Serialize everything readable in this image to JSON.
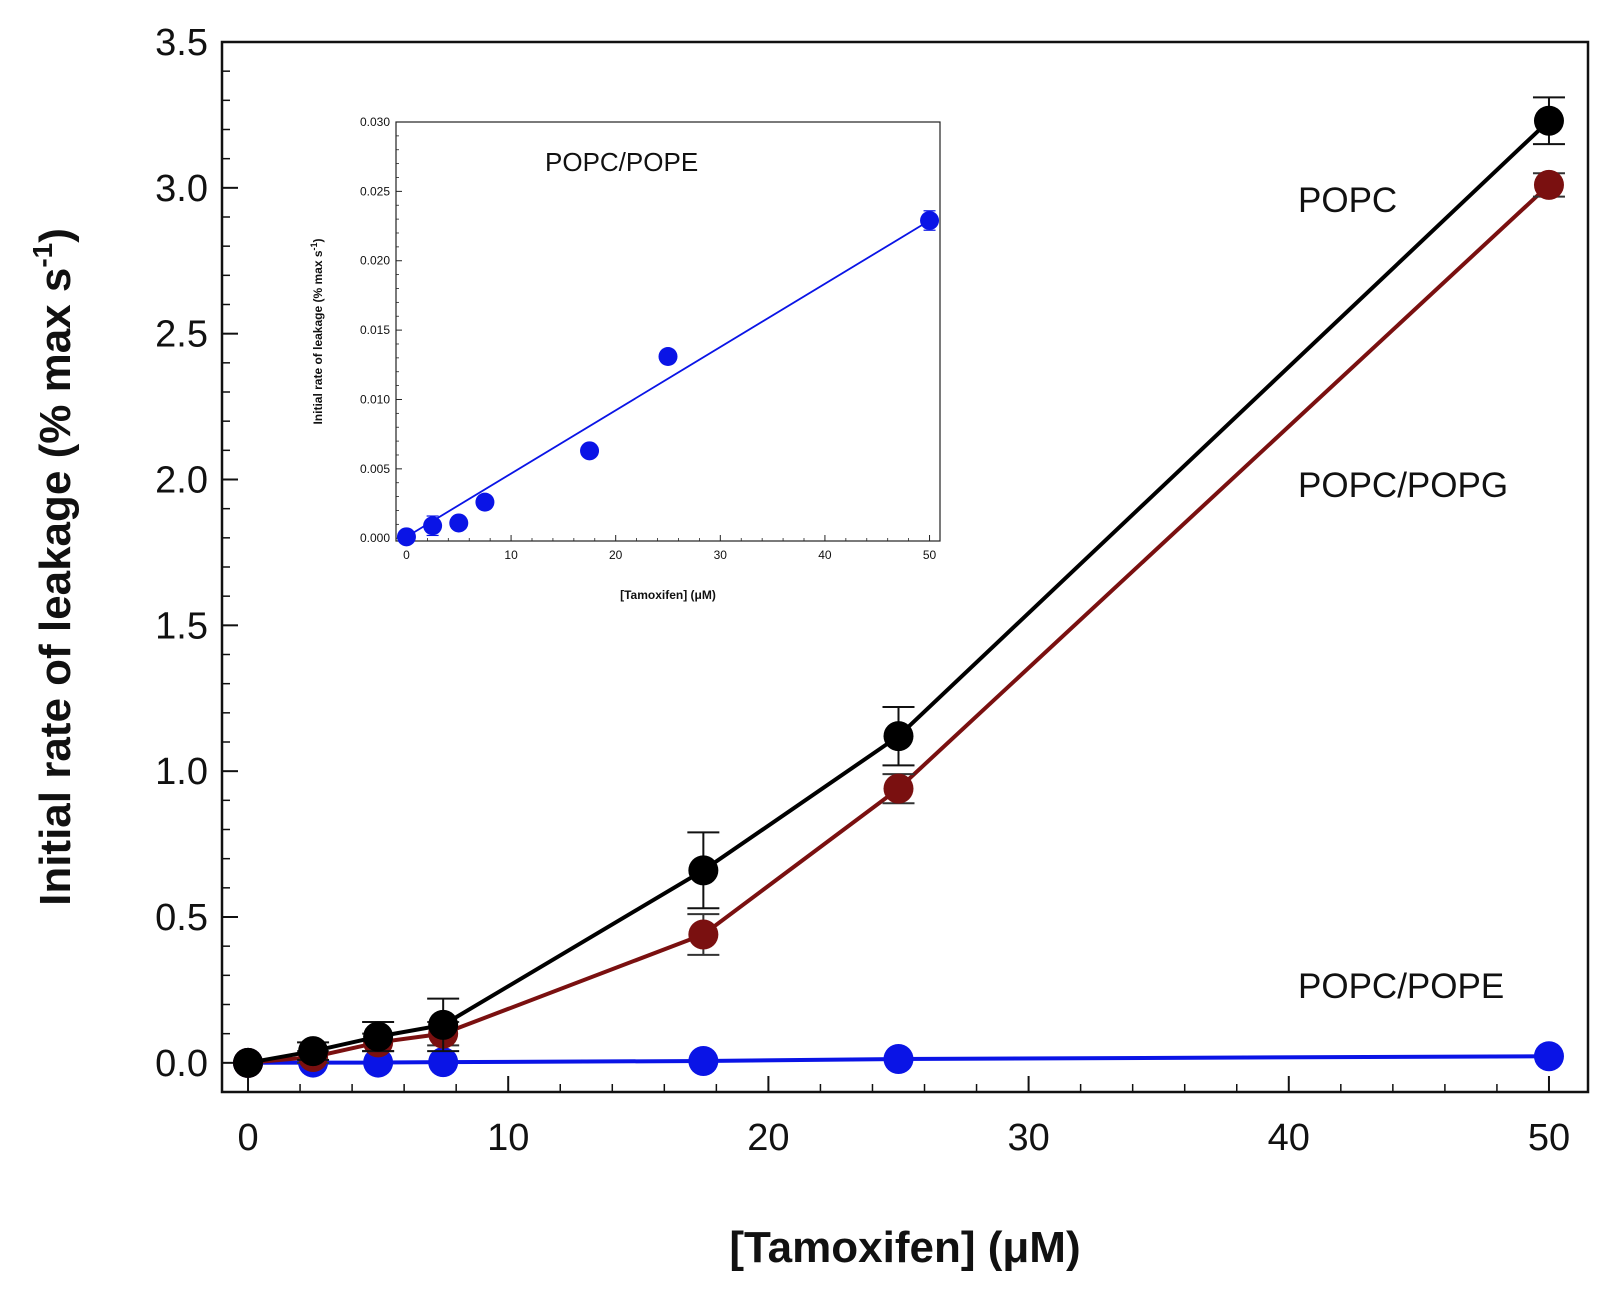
{
  "chart_data": [
    {
      "id": "main",
      "type": "line",
      "xlabel": "[Tamoxifen] (μM)",
      "ylabel_main": "Initial rate of leakage (% max s",
      "ylabel_sup": "-1",
      "ylabel_close": ")",
      "xlim": [
        -1,
        51.5
      ],
      "ylim": [
        -0.1,
        3.5
      ],
      "xticks": [
        0,
        10,
        20,
        30,
        40,
        50
      ],
      "xtick_labels": [
        "0",
        "10",
        "20",
        "30",
        "40",
        "50"
      ],
      "yticks": [
        0.0,
        0.5,
        1.0,
        1.5,
        2.0,
        2.5,
        3.0,
        3.5
      ],
      "ytick_labels": [
        "0.0",
        "0.5",
        "1.0",
        "1.5",
        "2.0",
        "2.5",
        "3.0",
        "3.5"
      ],
      "series": [
        {
          "name": "POPC",
          "color": "#000000",
          "x": [
            0,
            2.5,
            5,
            7.5,
            17.5,
            25,
            50
          ],
          "y": [
            0.0,
            0.04,
            0.09,
            0.13,
            0.66,
            1.12,
            3.23
          ],
          "err": [
            0.0,
            0.03,
            0.05,
            0.09,
            0.13,
            0.1,
            0.08
          ]
        },
        {
          "name": "POPC/POPG",
          "color": "#7a1010",
          "x": [
            0,
            2.5,
            5,
            7.5,
            17.5,
            25,
            50
          ],
          "y": [
            0.0,
            0.02,
            0.07,
            0.1,
            0.44,
            0.94,
            3.01
          ],
          "err": [
            0.0,
            0.02,
            0.03,
            0.04,
            0.07,
            0.05,
            0.04
          ]
        },
        {
          "name": "POPC/POPE",
          "color": "#0a14e6",
          "x": [
            0,
            2.5,
            5,
            7.5,
            17.5,
            25,
            50
          ],
          "y": [
            0.0,
            0.0009,
            0.0009,
            0.0024,
            0.0062,
            0.0131,
            0.0226
          ],
          "err": [
            0,
            0,
            0,
            0,
            0,
            0,
            0
          ]
        }
      ],
      "series_labels": [
        "POPC",
        "POPC/POPG",
        "POPC/POPE"
      ]
    },
    {
      "id": "inset",
      "type": "scatter",
      "title": "POPC/POPE",
      "xlabel": "[Tamoxifen] (μM)",
      "ylabel_main": "Initial rate of leakage (% max s",
      "ylabel_sup": "-1",
      "ylabel_close": ")",
      "xlim": [
        -1,
        51
      ],
      "ylim": [
        -0.0002,
        0.03
      ],
      "xticks": [
        0,
        10,
        20,
        30,
        40,
        50
      ],
      "xtick_labels": [
        "0",
        "10",
        "20",
        "30",
        "40",
        "50"
      ],
      "yticks": [
        0.0,
        0.005,
        0.01,
        0.015,
        0.02,
        0.025,
        0.03
      ],
      "ytick_labels": [
        "0.000",
        "0.005",
        "0.010",
        "0.015",
        "0.020",
        "0.025",
        "0.030"
      ],
      "color": "#0a14e6",
      "points": {
        "x": [
          0,
          2.5,
          5,
          7.5,
          17.5,
          25,
          50
        ],
        "y": [
          0.0001,
          0.0009,
          0.0011,
          0.0026,
          0.0063,
          0.0131,
          0.0229
        ],
        "err": [
          0,
          0.0007,
          0,
          0,
          0,
          0,
          0.0007
        ]
      },
      "fit": {
        "x": [
          0,
          50
        ],
        "y": [
          0.0001,
          0.0229
        ]
      }
    }
  ]
}
